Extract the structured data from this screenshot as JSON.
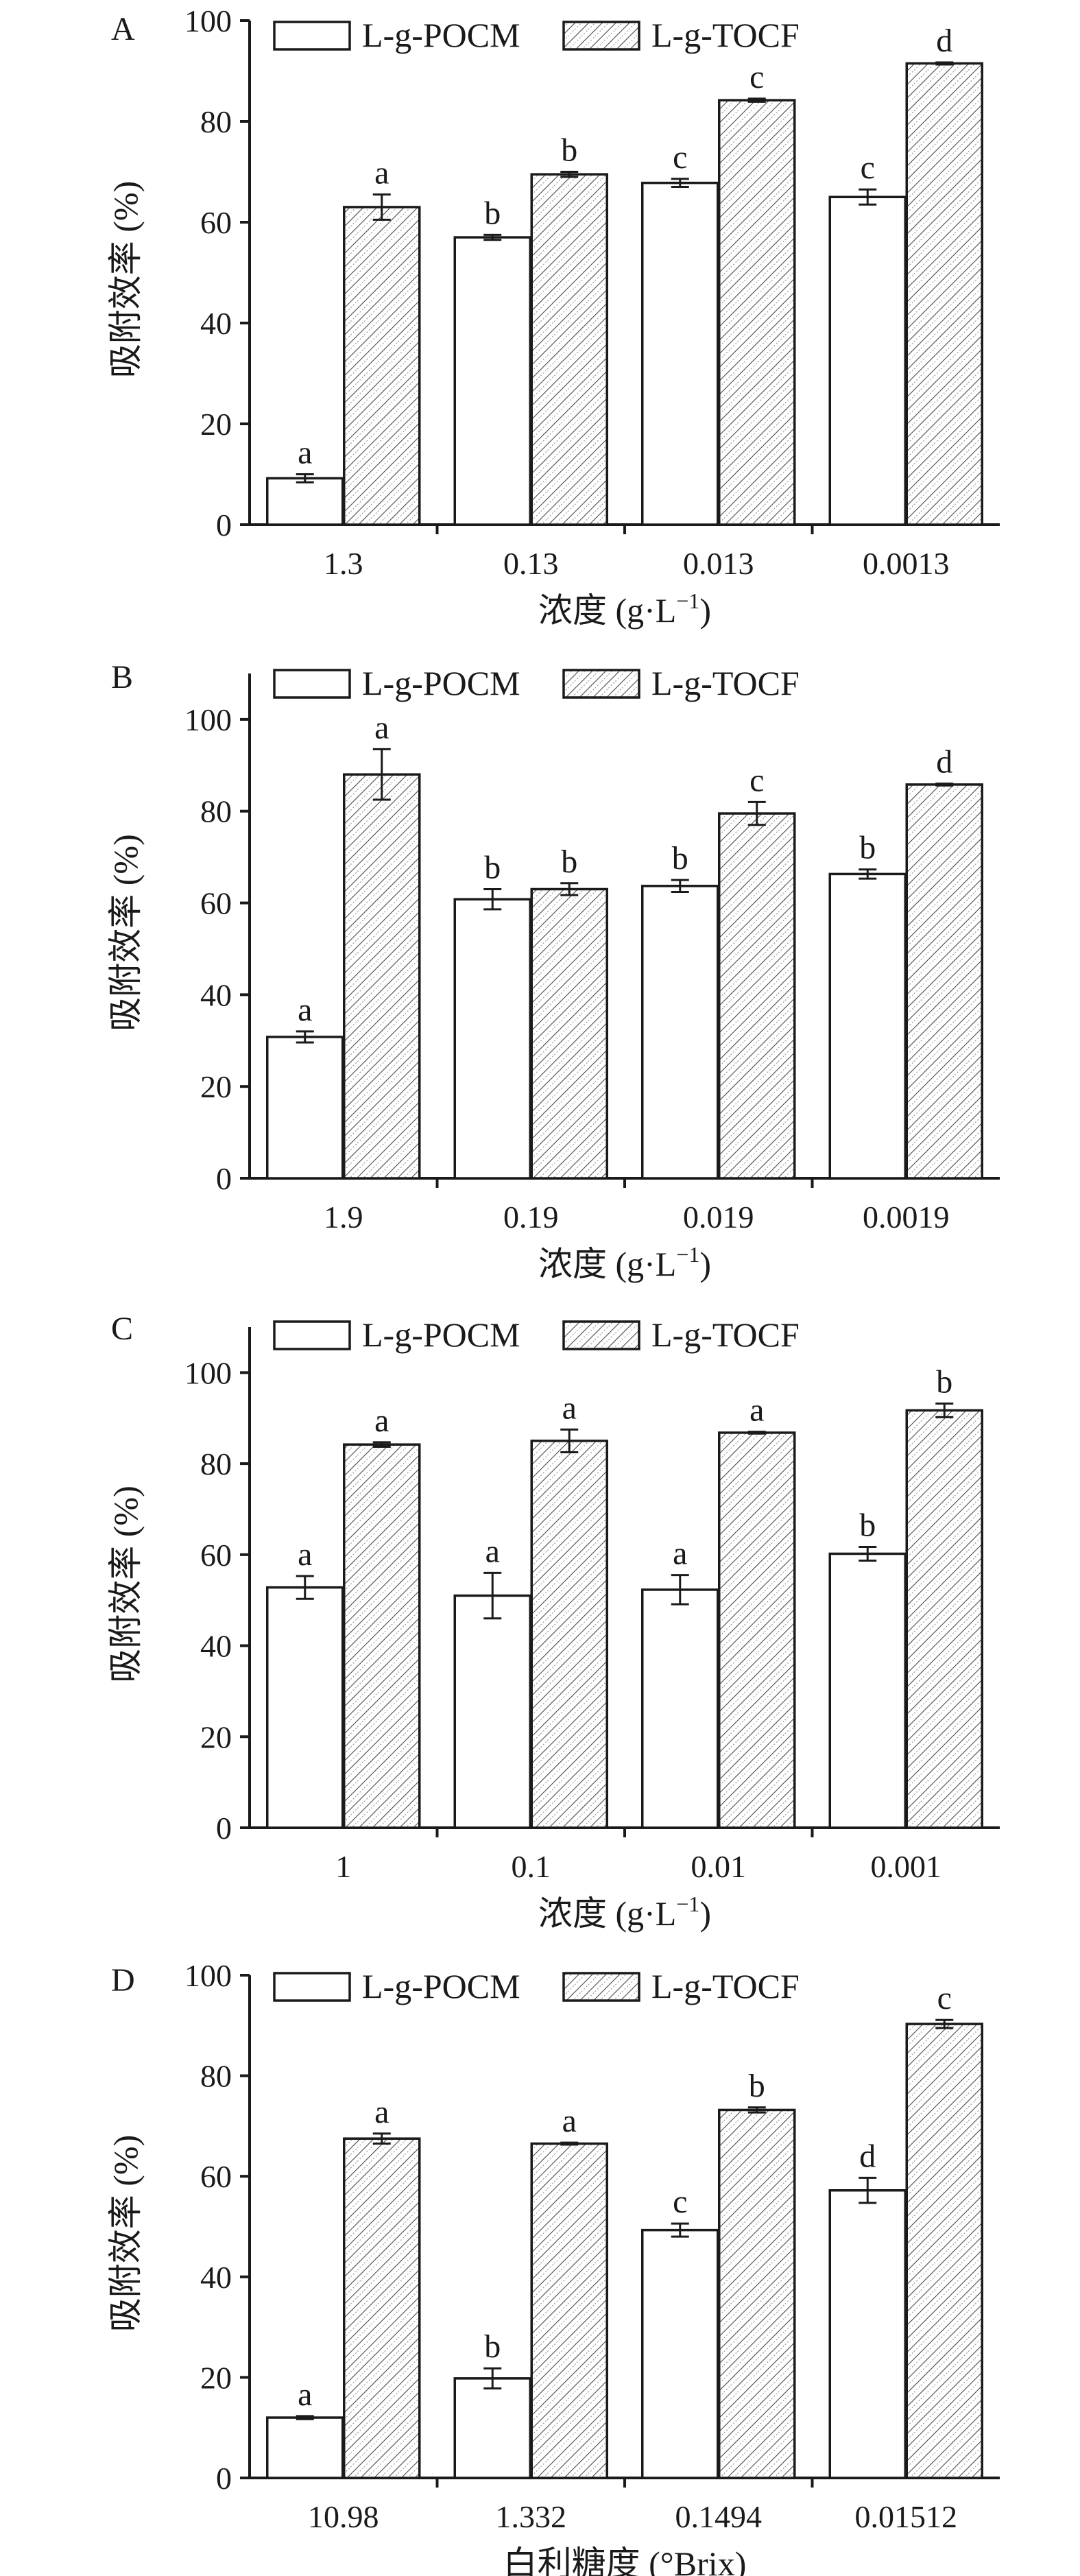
{
  "legend": {
    "series_a": "L-g-POCM",
    "series_b": "L-g-TOCF"
  },
  "colors": {
    "ink": "#1a1a1a",
    "open_fill": "#ffffff"
  },
  "chart_data": [
    {
      "panel": "A",
      "type": "bar",
      "ylabel": "吸附效率 (%)",
      "xlabel": "浓度 (g·L",
      "xlabel_sup": "−1",
      "xlabel_close": ")",
      "ylim": [
        0,
        100
      ],
      "yticks": [
        0,
        20,
        40,
        60,
        80,
        100
      ],
      "legend_position": "top",
      "categories": [
        "1.3",
        "0.13",
        "0.013",
        "0.0013"
      ],
      "series": [
        {
          "name": "L-g-POCM",
          "values": [
            9.2,
            57.0,
            67.8,
            65.0
          ],
          "errors": [
            0.8,
            0.5,
            0.8,
            1.5
          ],
          "letters": [
            "a",
            "b",
            "c",
            "c"
          ]
        },
        {
          "name": "L-g-TOCF",
          "values": [
            63.0,
            69.5,
            84.2,
            91.5
          ],
          "errors": [
            2.5,
            0.5,
            0.3,
            0.2
          ],
          "letters": [
            "a",
            "b",
            "c",
            "d"
          ]
        }
      ]
    },
    {
      "panel": "B",
      "type": "bar",
      "ylabel": "吸附效率 (%)",
      "xlabel": "浓度 (g·L",
      "xlabel_sup": "−1",
      "xlabel_close": ")",
      "ylim": [
        0,
        110
      ],
      "yticks": [
        0,
        20,
        40,
        60,
        80,
        100
      ],
      "legend_position": "top",
      "categories": [
        "1.9",
        "0.19",
        "0.019",
        "0.0019"
      ],
      "series": [
        {
          "name": "L-g-POCM",
          "values": [
            30.8,
            60.8,
            63.7,
            66.3
          ],
          "errors": [
            1.2,
            2.2,
            1.3,
            1.0
          ],
          "letters": [
            "a",
            "b",
            "b",
            "b"
          ]
        },
        {
          "name": "L-g-TOCF",
          "values": [
            88.0,
            63.0,
            79.5,
            85.8
          ],
          "errors": [
            5.5,
            1.3,
            2.5,
            0.2
          ],
          "letters": [
            "a",
            "b",
            "c",
            "d"
          ]
        }
      ]
    },
    {
      "panel": "C",
      "type": "bar",
      "ylabel": "吸附效率 (%)",
      "xlabel": "浓度 (g·L",
      "xlabel_sup": "−1",
      "xlabel_close": ")",
      "ylim": [
        0,
        110
      ],
      "yticks": [
        0,
        20,
        40,
        60,
        80,
        100
      ],
      "legend_position": "top",
      "categories": [
        "1",
        "0.1",
        "0.01",
        "0.001"
      ],
      "series": [
        {
          "name": "L-g-POCM",
          "values": [
            52.8,
            51.0,
            52.3,
            60.2
          ],
          "errors": [
            2.5,
            5.0,
            3.2,
            1.5
          ],
          "letters": [
            "a",
            "a",
            "a",
            "b"
          ]
        },
        {
          "name": "L-g-TOCF",
          "values": [
            84.2,
            85.0,
            86.8,
            91.7
          ],
          "errors": [
            0.5,
            2.5,
            0.2,
            1.5
          ],
          "letters": [
            "a",
            "a",
            "a",
            "b"
          ]
        }
      ]
    },
    {
      "panel": "D",
      "type": "bar",
      "ylabel": "吸附效率 (%)",
      "xlabel": "白利糖度 (°Brix)",
      "xlabel_sup": "",
      "xlabel_close": "",
      "ylim": [
        0,
        100
      ],
      "yticks": [
        0,
        20,
        40,
        60,
        80,
        100
      ],
      "legend_position": "top",
      "categories": [
        "10.98",
        "1.332",
        "0.1494",
        "0.01512"
      ],
      "series": [
        {
          "name": "L-g-POCM",
          "values": [
            12.0,
            19.8,
            49.3,
            57.2
          ],
          "errors": [
            0.3,
            2.0,
            1.3,
            2.5
          ],
          "letters": [
            "a",
            "b",
            "c",
            "d"
          ]
        },
        {
          "name": "L-g-TOCF",
          "values": [
            67.5,
            66.5,
            73.2,
            90.3
          ],
          "errors": [
            1.0,
            0.2,
            0.5,
            0.8
          ],
          "letters": [
            "a",
            "a",
            "b",
            "c"
          ]
        }
      ]
    }
  ]
}
